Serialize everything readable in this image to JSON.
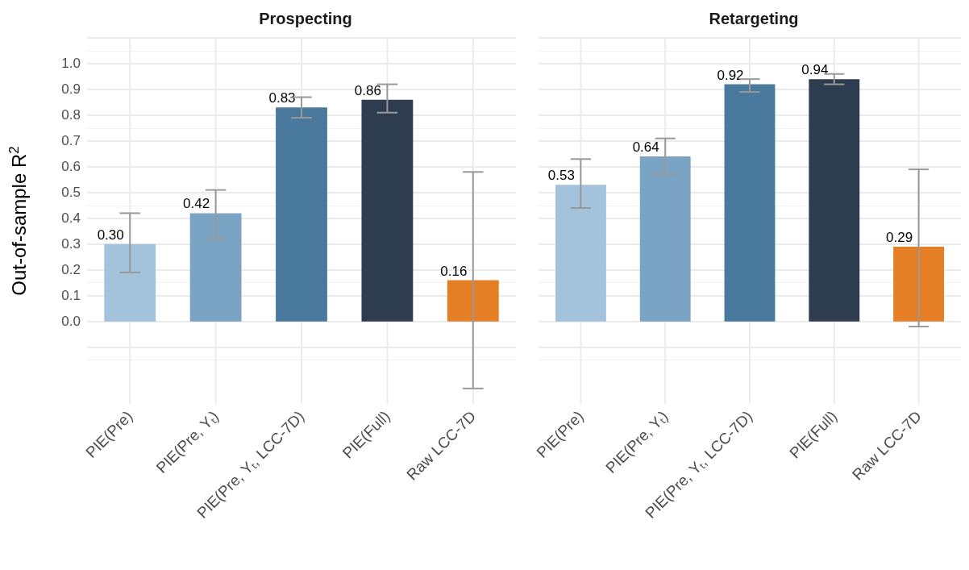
{
  "chart_data": [
    {
      "type": "bar",
      "title": "Prospecting",
      "ylabel": "Out-of-sample R$^{2}$",
      "categories": [
        "PIE(Pre)",
        "PIE(Pre, Yₜ)",
        "PIE(Pre, Yₜ, LCC-7D)",
        "PIE(Full)",
        "Raw LCC-7D"
      ],
      "values": [
        0.3,
        0.42,
        0.83,
        0.86,
        0.16
      ],
      "colors": [
        "#a3c2dc",
        "#7ba3c4",
        "#4a799e",
        "#2d3d4f",
        "#e57f25"
      ],
      "errors": [
        [
          0.19,
          0.42
        ],
        [
          0.32,
          0.51
        ],
        [
          0.79,
          0.87
        ],
        [
          0.81,
          0.92
        ],
        [
          -0.26,
          0.58
        ]
      ],
      "value_labels": [
        "0.30",
        "0.42",
        "0.83",
        "0.86",
        "0.16"
      ],
      "ylim": [
        -0.32,
        1.1
      ],
      "yticks": [
        {
          "value": -0.1,
          "label": null
        },
        {
          "value": 0,
          "label": "0.0"
        },
        0.1,
        0.2,
        0.3,
        0.4,
        0.5,
        0.6,
        0.7,
        0.8,
        0.9,
        {
          "value": 1,
          "label": "1.0"
        },
        {
          "value": 1.1,
          "label": null
        }
      ],
      "grid": true
    },
    {
      "type": "bar",
      "title": "Retargeting",
      "categories": [
        "PIE(Pre)",
        "PIE(Pre, Yₜ)",
        "PIE(Pre, Yₜ, LCC-7D)",
        "PIE(Full)",
        "Raw LCC-7D"
      ],
      "values": [
        0.53,
        0.64,
        0.92,
        0.94,
        0.29
      ],
      "colors": [
        "#a3c2dc",
        "#7ba3c4",
        "#4a799e",
        "#2d3d4f",
        "#e57f25"
      ],
      "errors": [
        [
          0.44,
          0.63
        ],
        [
          0.57,
          0.71
        ],
        [
          0.89,
          0.94
        ],
        [
          0.92,
          0.96
        ],
        [
          -0.02,
          0.59
        ]
      ],
      "value_labels": [
        "0.53",
        "0.64",
        "0.92",
        "0.94",
        "0.29"
      ],
      "ylim": [
        -0.32,
        1.1
      ],
      "yticks": [
        {
          "value": -0.1,
          "label": null
        },
        {
          "value": 0,
          "label": null
        },
        {
          "value": 0.1,
          "label": null
        },
        {
          "value": 0.2,
          "label": null
        },
        {
          "value": 0.3,
          "label": null
        },
        {
          "value": 0.4,
          "label": null
        },
        {
          "value": 0.5,
          "label": null
        },
        {
          "value": 0.6,
          "label": null
        },
        {
          "value": 0.7,
          "label": null
        },
        {
          "value": 0.8,
          "label": null
        },
        {
          "value": 0.9,
          "label": null
        },
        {
          "value": 1,
          "label": null
        },
        {
          "value": 1.1,
          "label": null
        }
      ],
      "grid": true,
      "tick_labels": "x"
    }
  ]
}
